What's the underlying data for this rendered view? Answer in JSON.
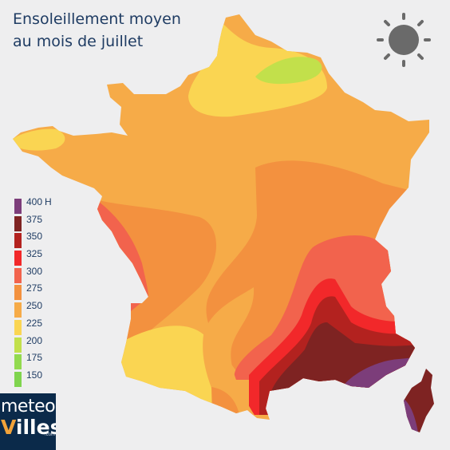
{
  "title": {
    "line1": "Ensoleillement moyen",
    "line2": "au mois de juillet"
  },
  "icons": {
    "sun": "sun-icon"
  },
  "legend": {
    "unit": "H",
    "items": [
      {
        "label": "400",
        "color": "#7c3d7a"
      },
      {
        "label": "375",
        "color": "#7e2322"
      },
      {
        "label": "350",
        "color": "#b3221f"
      },
      {
        "label": "325",
        "color": "#f2282a"
      },
      {
        "label": "300",
        "color": "#f2634d"
      },
      {
        "label": "275",
        "color": "#f3913f"
      },
      {
        "label": "250",
        "color": "#f6ab48"
      },
      {
        "label": "225",
        "color": "#fad552"
      },
      {
        "label": "200",
        "color": "#c2e04b"
      },
      {
        "label": "175",
        "color": "#92da4f"
      },
      {
        "label": "150",
        "color": "#7fd44e"
      }
    ]
  },
  "logo": {
    "line1": "meteo",
    "line2a": "V",
    "line2b": "illes",
    "line3": ".com"
  }
}
